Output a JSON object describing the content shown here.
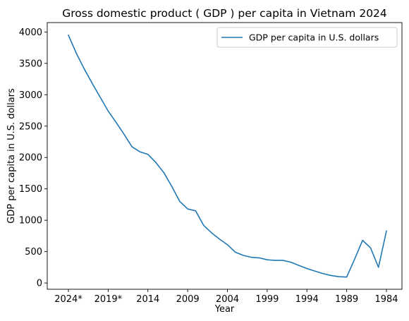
{
  "chart_data": {
    "type": "line",
    "title": "Gross domestic product ( GDP ) per capita in Vietnam 2024",
    "xlabel": "Year",
    "ylabel": "GDP per capita in U.S. dollars",
    "x_reversed": true,
    "x_tick_labels": [
      "2024*",
      "2019*",
      "2014",
      "2009",
      "2004",
      "1999",
      "1994",
      "1989",
      "1984"
    ],
    "y_ticks": [
      0,
      500,
      1000,
      1500,
      2000,
      2500,
      3000,
      3500,
      4000
    ],
    "ylim": [
      -100,
      4150
    ],
    "grid": false,
    "legend": "top-right",
    "line_color": "#1f77b4",
    "series": [
      {
        "name": "GDP per capita in U.S. dollars",
        "x": [
          2024,
          2023,
          2022,
          2021,
          2020,
          2019,
          2018,
          2017,
          2016,
          2015,
          2014,
          2013,
          2012,
          2011,
          2010,
          2009,
          2008,
          2007,
          2006,
          2005,
          2004,
          2003,
          2002,
          2001,
          2000,
          1999,
          1998,
          1997,
          1996,
          1995,
          1994,
          1993,
          1992,
          1991,
          1990,
          1989,
          1988,
          1987,
          1986,
          1985,
          1984
        ],
        "values": [
          3950,
          3660,
          3410,
          3180,
          2960,
          2740,
          2560,
          2370,
          2170,
          2090,
          2050,
          1920,
          1760,
          1540,
          1300,
          1180,
          1150,
          920,
          800,
          700,
          610,
          490,
          440,
          410,
          400,
          370,
          360,
          360,
          330,
          280,
          230,
          190,
          150,
          120,
          100,
          95,
          380,
          680,
          560,
          250,
          830
        ]
      }
    ]
  }
}
